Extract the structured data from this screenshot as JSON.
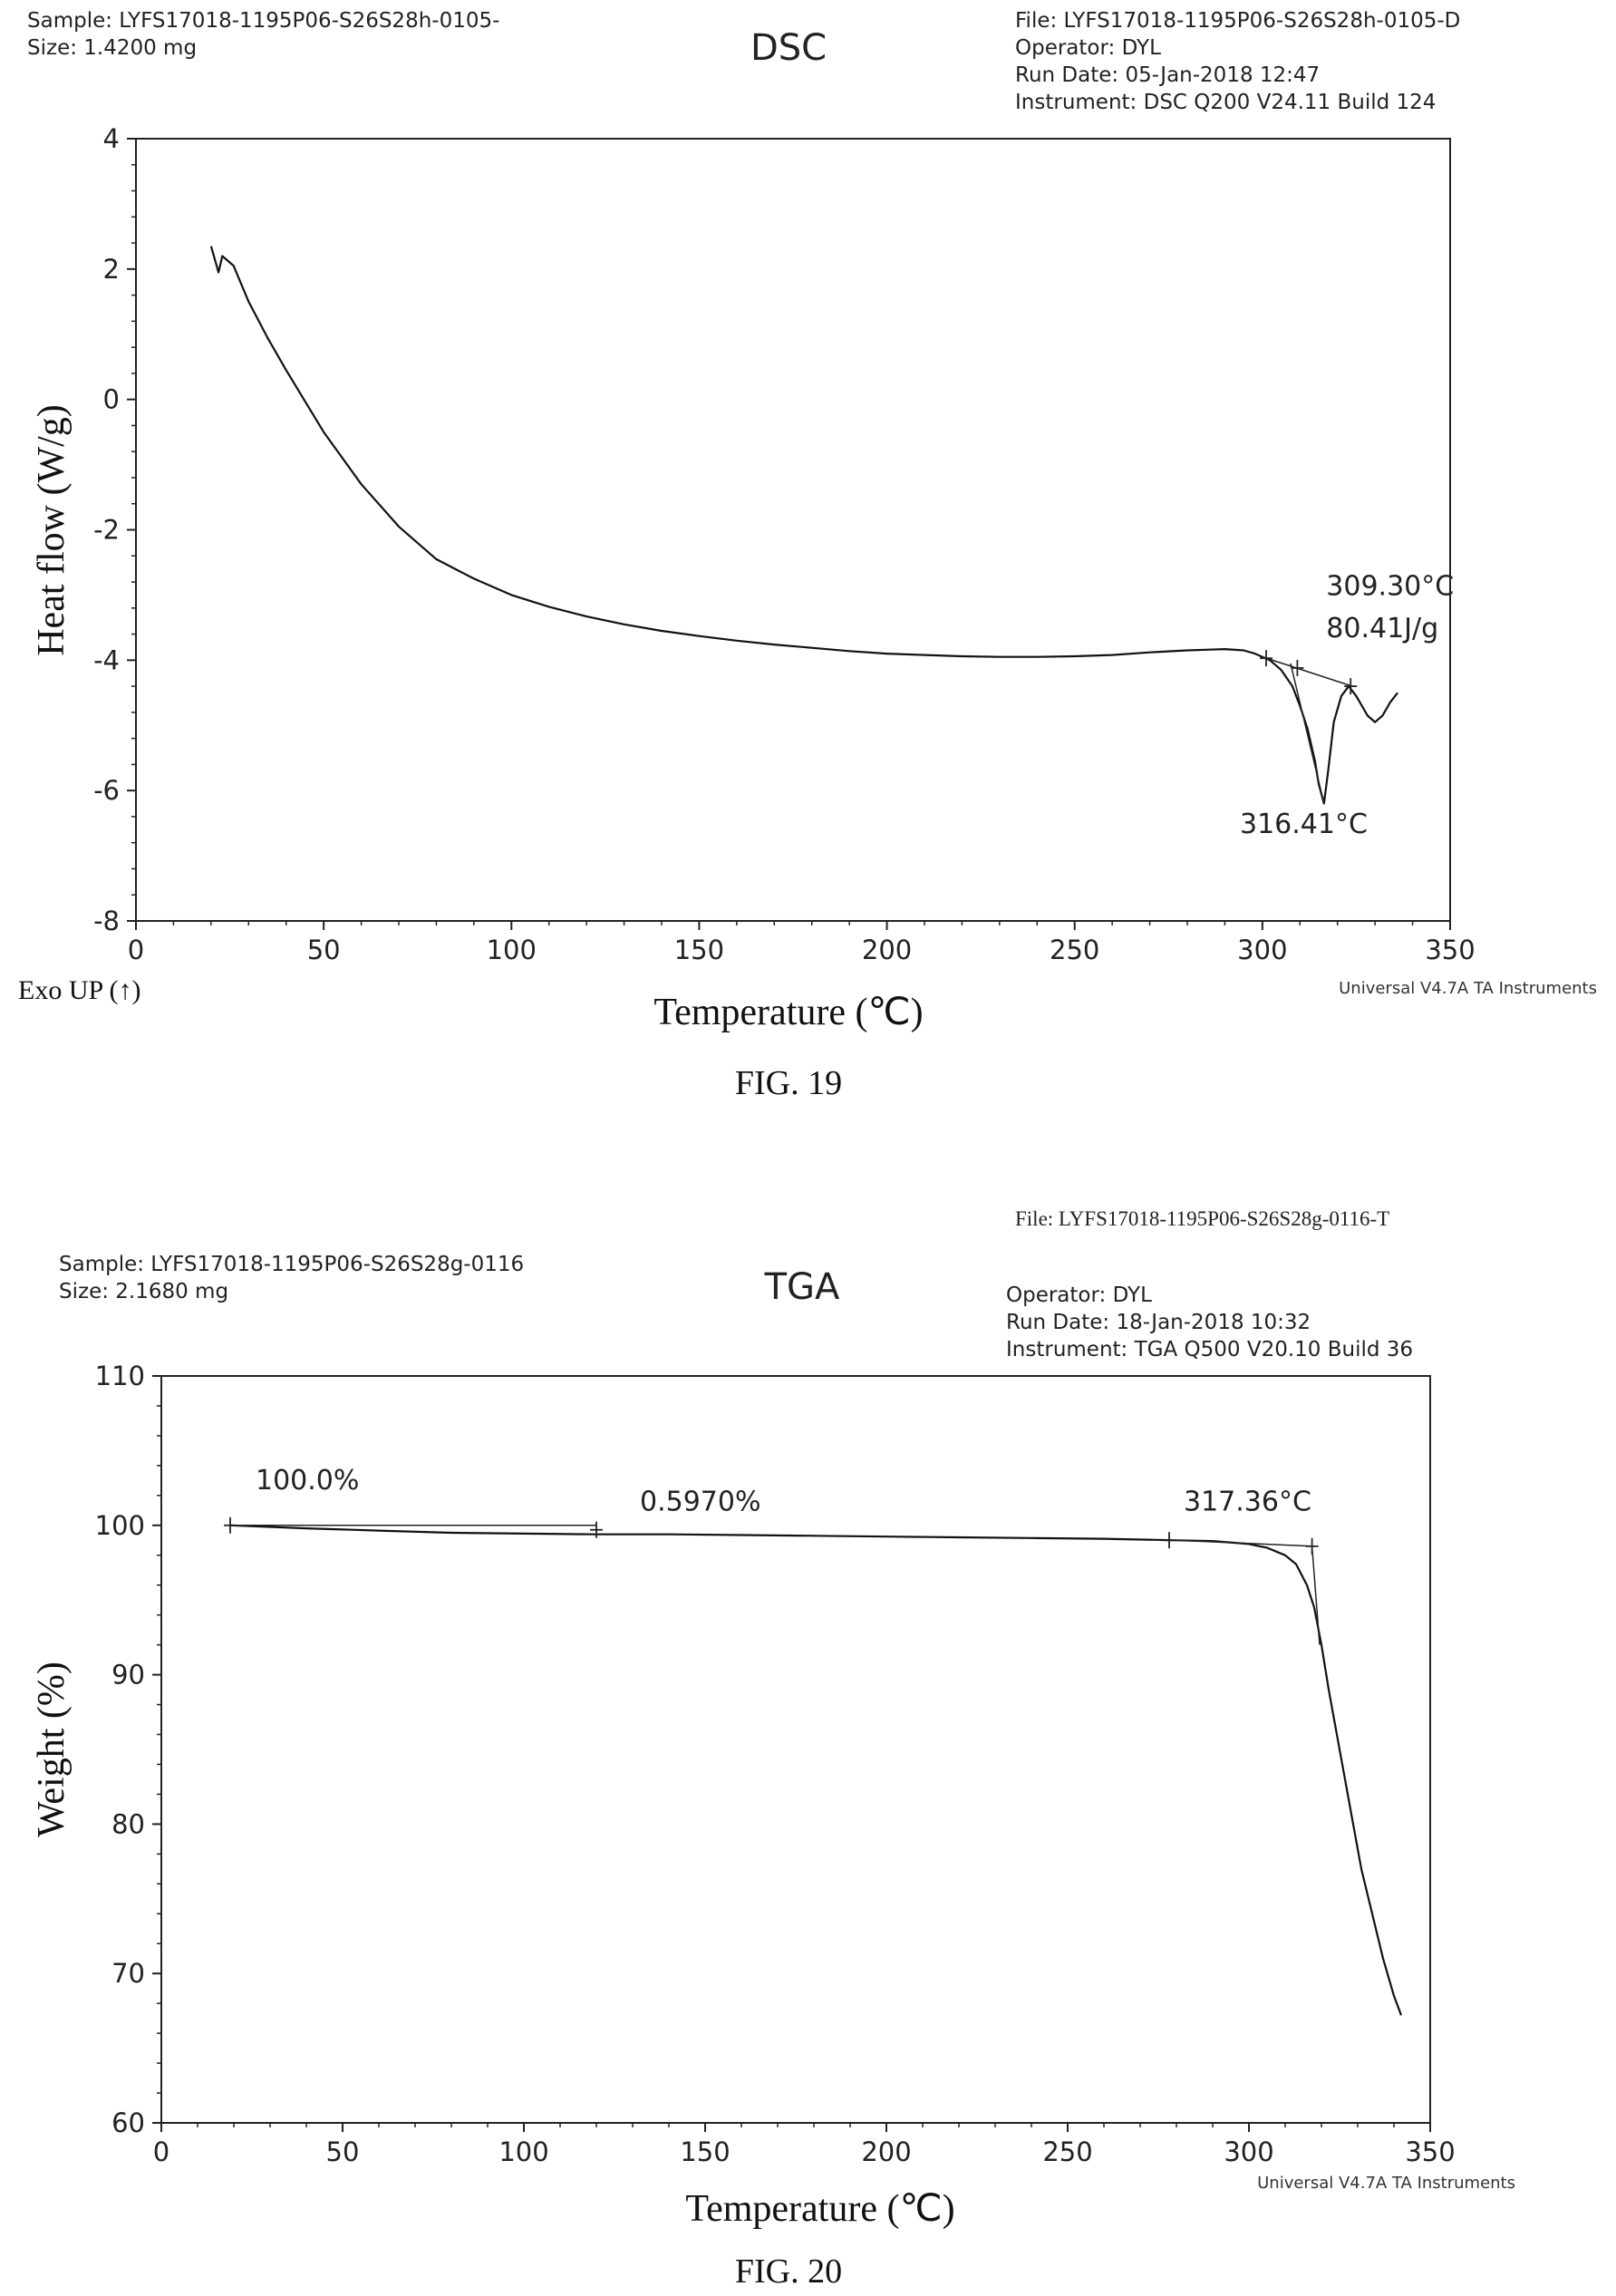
{
  "figures": [
    {
      "header_left": [
        "Sample: LYFS17018-1195P06-S26S28h-0105-",
        "Size:  1.4200 mg"
      ],
      "title": "DSC",
      "header_right_top": "",
      "header_right": [
        "File: LYFS17018-1195P06-S26S28h-0105-D",
        "Operator: DYL",
        "Run Date: 05-Jan-2018 12:47",
        "Instrument: DSC Q200 V24.11 Build 124"
      ],
      "y_axis_label": "Heat flow  (W/g)",
      "x_axis_label": "Temperature (℃)",
      "corner_label": "Exo UP (↑)",
      "brand": "Universal V4.7A TA Instruments",
      "caption": "FIG. 19",
      "annotations": [
        "309.30°C",
        "80.41J/g",
        "316.41°C"
      ]
    },
    {
      "header_left": [
        "Sample: LYFS17018-1195P06-S26S28g-0116",
        "Size:  2.1680 mg"
      ],
      "title": "TGA",
      "header_right_top": "File: LYFS17018-1195P06-S26S28g-0116-T",
      "header_right": [
        "Operator: DYL",
        "Run Date: 18-Jan-2018 10:32",
        "Instrument: TGA Q500 V20.10 Build 36"
      ],
      "y_axis_label": "Weight  (%)",
      "x_axis_label": "Temperature (℃)",
      "corner_label": "",
      "brand": "Universal V4.7A TA Instruments",
      "caption": "FIG. 20",
      "annotations": [
        "100.0%",
        "0.5970%",
        "317.36°C"
      ]
    }
  ],
  "chart_data": [
    {
      "type": "line",
      "title": "DSC",
      "xlabel": "Temperature (℃)",
      "ylabel": "Heat flow  (W/g)",
      "xlim": [
        0,
        350
      ],
      "ylim": [
        -8,
        4
      ],
      "xticks": [
        0,
        50,
        100,
        150,
        200,
        250,
        300,
        350
      ],
      "yticks": [
        -8,
        -6,
        -4,
        -2,
        0,
        2,
        4
      ],
      "grid": false,
      "series": [
        {
          "x": [
            20,
            21,
            22,
            23,
            24,
            26,
            30,
            35,
            40,
            50,
            60,
            70,
            80,
            90,
            100,
            110,
            120,
            130,
            140,
            150,
            160,
            170,
            180,
            190,
            200,
            210,
            220,
            230,
            240,
            250,
            260,
            270,
            280,
            285,
            290,
            295,
            298,
            302,
            305,
            308,
            310,
            312,
            314,
            315,
            316.4,
            317.5,
            319,
            321,
            323,
            325,
            328,
            330,
            332,
            334,
            336
          ],
          "y": [
            2.35,
            2.15,
            1.95,
            2.2,
            2.15,
            2.05,
            1.5,
            0.95,
            0.45,
            -0.5,
            -1.3,
            -1.95,
            -2.45,
            -2.75,
            -3.0,
            -3.18,
            -3.33,
            -3.45,
            -3.55,
            -3.63,
            -3.7,
            -3.76,
            -3.81,
            -3.86,
            -3.9,
            -3.92,
            -3.94,
            -3.95,
            -3.95,
            -3.94,
            -3.92,
            -3.88,
            -3.85,
            -3.84,
            -3.83,
            -3.85,
            -3.9,
            -4.0,
            -4.15,
            -4.4,
            -4.7,
            -5.05,
            -5.55,
            -5.9,
            -6.2,
            -5.7,
            -4.95,
            -4.55,
            -4.4,
            -4.55,
            -4.85,
            -4.95,
            -4.85,
            -4.65,
            -4.5
          ]
        }
      ],
      "baselines": [
        {
          "x": [
            300,
            324
          ],
          "y": [
            -3.95,
            -4.4
          ]
        },
        {
          "x": [
            307.5,
            316.4
          ],
          "y": [
            -4.05,
            -6.2
          ]
        }
      ],
      "markers": [
        {
          "x": 301,
          "y": -3.97
        },
        {
          "x": 309.3,
          "y": -4.12
        },
        {
          "x": 323.5,
          "y": -4.4
        }
      ],
      "annotations": [
        {
          "text": "309.30°C",
          "x": 317,
          "y": -3.0
        },
        {
          "text": "80.41J/g",
          "x": 317,
          "y": -3.65
        },
        {
          "text": "316.41°C",
          "x": 294,
          "y": -6.65
        }
      ]
    },
    {
      "type": "line",
      "title": "TGA",
      "xlabel": "Temperature (℃)",
      "ylabel": "Weight  (%)",
      "xlim": [
        0,
        350
      ],
      "ylim": [
        60,
        110
      ],
      "xticks": [
        0,
        50,
        100,
        150,
        200,
        250,
        300,
        350
      ],
      "yticks": [
        60,
        70,
        80,
        90,
        100,
        110
      ],
      "grid": false,
      "series": [
        {
          "x": [
            19,
            40,
            60,
            80,
            100,
            120,
            140,
            160,
            180,
            200,
            220,
            240,
            260,
            280,
            290,
            300,
            305,
            310,
            313,
            316,
            318,
            320,
            322,
            325,
            328,
            331,
            334,
            337,
            340,
            342
          ],
          "y": [
            100.0,
            99.8,
            99.65,
            99.5,
            99.45,
            99.4,
            99.4,
            99.35,
            99.3,
            99.25,
            99.2,
            99.15,
            99.1,
            99.0,
            98.95,
            98.75,
            98.5,
            98.0,
            97.4,
            96.0,
            94.5,
            92.0,
            89.0,
            85.0,
            81.0,
            77.0,
            74.0,
            71.0,
            68.5,
            67.2
          ]
        }
      ],
      "baselines": [
        {
          "x": [
            19,
            120
          ],
          "y": [
            100.0,
            100.0
          ]
        },
        {
          "x": [
            280,
            318
          ],
          "y": [
            99.0,
            98.6
          ]
        },
        {
          "x": [
            317.4,
            319.5
          ],
          "y": [
            98.6,
            92.0
          ]
        }
      ],
      "markers": [
        {
          "x": 19,
          "y": 100.0
        },
        {
          "x": 120,
          "y": 99.7
        },
        {
          "x": 278,
          "y": 99.0
        },
        {
          "x": 317.4,
          "y": 98.6
        }
      ],
      "annotations": [
        {
          "text": "100.0%",
          "x": 26,
          "y": 102.4
        },
        {
          "text": "0.5970%",
          "x": 132,
          "y": 101.0
        },
        {
          "text": "317.36°C",
          "x": 282,
          "y": 101.0
        }
      ]
    }
  ]
}
